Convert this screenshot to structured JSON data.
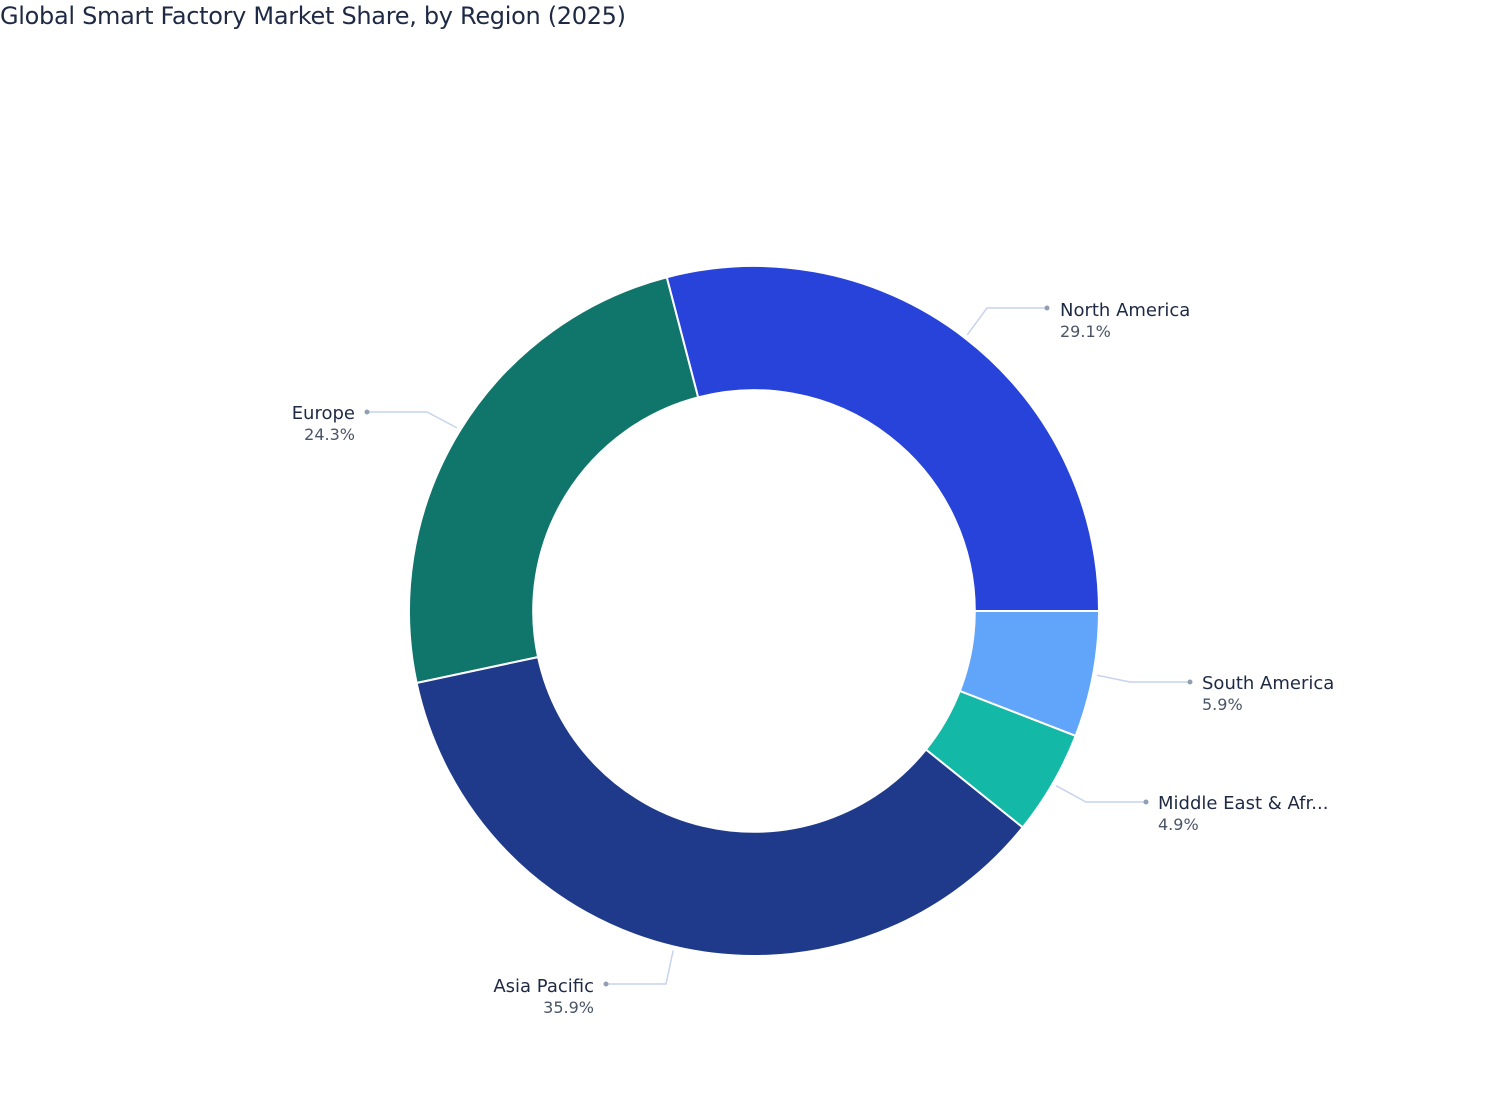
{
  "title": "Global Smart Factory Market Share, by Region (2025)",
  "chart_data": {
    "type": "pie",
    "subtype": "donut",
    "title": "Global Smart Factory Market Share, by Region (2025)",
    "hole": 0.64,
    "start_angle_deg": 0,
    "direction": "counterclockwise",
    "categories": [
      "North America",
      "Europe",
      "Asia Pacific",
      "Middle East & Africa",
      "South America"
    ],
    "values": [
      29.1,
      24.3,
      35.9,
      4.9,
      5.9
    ],
    "unit": "%",
    "colors": [
      "#2743d9",
      "#10756b",
      "#1f3a8a",
      "#14b8a6",
      "#60a5fa"
    ],
    "labels": [
      {
        "name": "North America",
        "display": "North America",
        "value": "29.1%"
      },
      {
        "name": "Europe",
        "display": "Europe",
        "value": "24.3%"
      },
      {
        "name": "Asia Pacific",
        "display": "Asia Pacific",
        "value": "35.9%"
      },
      {
        "name": "Middle East & Africa",
        "display": "Middle East & Afr...",
        "value": "4.9%"
      },
      {
        "name": "South America",
        "display": "South America",
        "value": "5.9%"
      }
    ],
    "legend": "none"
  }
}
